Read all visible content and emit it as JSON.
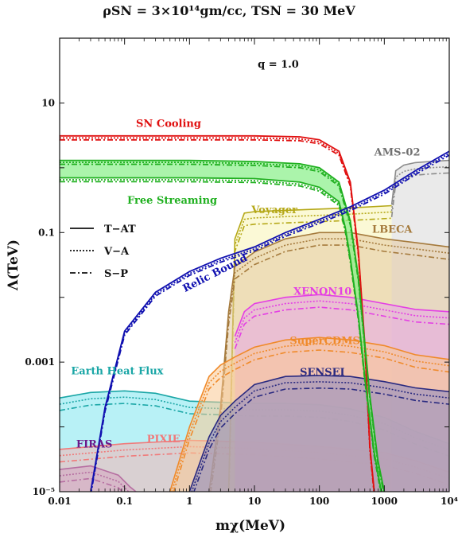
{
  "chart_data": {
    "type": "line",
    "title": "ρSN = 3×10¹⁴gm/cc, TSN = 30 MeV",
    "annotation": "q = 1.0",
    "xlabel": "mχ(MeV)",
    "ylabel": "Λ(TeV)",
    "x_scale": "log",
    "y_scale": "log",
    "xlim": [
      0.01,
      10000
    ],
    "ylim": [
      1e-05,
      100
    ],
    "x_ticks": [
      {
        "value": 0.01,
        "label": "0.01"
      },
      {
        "value": 0.1,
        "label": "0.1"
      },
      {
        "value": 1,
        "label": "1"
      },
      {
        "value": 10,
        "label": "10"
      },
      {
        "value": 100,
        "label": "100"
      },
      {
        "value": 1000,
        "label": "1000"
      },
      {
        "value": 10000,
        "label": "10⁴"
      }
    ],
    "y_ticks": [
      {
        "value": 1e-05,
        "label": "10⁻⁵"
      },
      {
        "value": 0.001,
        "label": "0.001"
      },
      {
        "value": 0.1,
        "label": "0.1"
      },
      {
        "value": 10,
        "label": "10"
      }
    ],
    "legend": {
      "placement": "left",
      "entries": [
        {
          "label": "T−AT",
          "style": "solid"
        },
        {
          "label": "V−A",
          "style": "dotted"
        },
        {
          "label": "S−P",
          "style": "dashdot"
        }
      ]
    },
    "regions": [
      {
        "name": "Earth Heat Flux",
        "color": "#1aa6a6",
        "fill": "#7de6ee",
        "x": [
          0.01,
          0.03,
          0.1,
          0.3,
          1,
          3,
          10,
          30,
          100,
          300,
          1000,
          3000,
          10000
        ],
        "upper": [
          0.00028,
          0.00034,
          0.00036,
          0.00033,
          0.00025,
          0.00024,
          0.00023,
          0.00023,
          0.00022,
          0.00019,
          0.00014,
          8.5e-05,
          5.5e-05
        ]
      },
      {
        "name": "FIRAS",
        "color": "#6a1a8a",
        "fill": "#b090d0",
        "x": [
          0.01,
          0.03,
          0.08,
          0.12,
          0.15
        ],
        "upper": [
          2.2e-05,
          2.5e-05,
          1.8e-05,
          1.2e-05,
          1e-05
        ]
      },
      {
        "name": "PIXIE",
        "color": "#f07a7a",
        "fill": "#f4b4b4",
        "x": [
          0.01,
          0.1,
          1,
          10,
          100,
          1000,
          3000,
          10000
        ],
        "upper": [
          4.5e-05,
          5.5e-05,
          6.2e-05,
          5.8e-05,
          5e-05,
          4e-05,
          3e-05,
          2e-05
        ]
      },
      {
        "name": "Voyager",
        "color": "#b5a817",
        "fill": "#f8f4b4",
        "x": [
          4,
          5,
          7,
          10,
          30,
          100,
          300,
          1300
        ],
        "upper": [
          1e-05,
          0.08,
          0.2,
          0.21,
          0.22,
          0.23,
          0.24,
          0.26
        ]
      },
      {
        "name": "AMS-02",
        "color": "#8c8c8c",
        "fill": "#d8d8d8",
        "x": [
          1300,
          1500,
          2000,
          3000,
          5000,
          10000
        ],
        "upper": [
          0.27,
          0.9,
          1.1,
          1.2,
          1.25,
          1.3
        ]
      },
      {
        "name": "LBECA",
        "color": "#a57a3c",
        "fill": "#e4c9a0",
        "x": [
          2,
          3,
          4,
          5,
          10,
          30,
          100,
          300,
          1000,
          3000,
          10000
        ],
        "upper": [
          1e-05,
          0.0002,
          0.006,
          0.03,
          0.05,
          0.08,
          0.1,
          0.1,
          0.08,
          0.07,
          0.06
        ]
      },
      {
        "name": "XENON10",
        "color": "#e43fe4",
        "fill": "#e7a6e7",
        "x": [
          5,
          7,
          10,
          30,
          100,
          300,
          1000,
          3000,
          10000
        ],
        "upper": [
          0.0025,
          0.006,
          0.008,
          0.01,
          0.011,
          0.01,
          0.008,
          0.0065,
          0.006
        ]
      },
      {
        "name": "SuperCDMS",
        "color": "#f08a2a",
        "fill": "#f9c994",
        "x": [
          0.5,
          1,
          2,
          3,
          5,
          10,
          30,
          100,
          300,
          1000,
          3000,
          10000
        ],
        "upper": [
          1e-05,
          0.0001,
          0.0006,
          0.0009,
          0.0012,
          0.0017,
          0.0022,
          0.0024,
          0.0022,
          0.0018,
          0.0013,
          0.0011
        ]
      },
      {
        "name": "SENSEI",
        "color": "#2a2a80",
        "fill": "#8888c0",
        "x": [
          1,
          2,
          3,
          5,
          10,
          30,
          100,
          300,
          1000,
          3000,
          10000
        ],
        "upper": [
          1e-05,
          7e-05,
          0.00015,
          0.00025,
          0.00045,
          0.0006,
          0.00062,
          0.0006,
          0.0005,
          0.0004,
          0.00035
        ]
      }
    ],
    "series": [
      {
        "name": "SN Cooling",
        "color": "#e01010",
        "x": [
          0.01,
          1,
          10,
          50,
          100,
          200,
          300,
          400,
          500,
          600,
          700
        ],
        "y": [
          3.1,
          3.1,
          3.1,
          3.0,
          2.7,
          1.8,
          0.6,
          0.05,
          0.002,
          5e-05,
          1e-05
        ]
      },
      {
        "name": "Free Streaming",
        "color": "#20b020",
        "x": [
          0.01,
          1,
          10,
          50,
          100,
          200,
          300,
          400,
          500,
          600,
          800,
          1000
        ],
        "y": [
          1.3,
          1.3,
          1.25,
          1.15,
          1.0,
          0.6,
          0.15,
          0.02,
          0.002,
          0.0003,
          3e-05,
          1e-05
        ]
      },
      {
        "name": "Free Streaming lower",
        "color": "#20b020",
        "x": [
          0.01,
          1,
          10,
          50,
          100,
          200,
          250,
          300,
          400,
          500,
          700,
          900
        ],
        "y": [
          0.7,
          0.7,
          0.68,
          0.6,
          0.5,
          0.3,
          0.12,
          0.04,
          0.005,
          0.0006,
          4e-05,
          1e-05
        ]
      },
      {
        "name": "Relic Bound",
        "color": "#1010b0",
        "x": [
          0.03,
          0.05,
          0.1,
          0.3,
          1,
          3,
          10,
          30,
          100,
          300,
          1000,
          3000,
          10000
        ],
        "y": [
          1e-05,
          0.0002,
          0.003,
          0.012,
          0.025,
          0.04,
          0.06,
          0.1,
          0.16,
          0.25,
          0.45,
          0.9,
          1.8
        ]
      }
    ],
    "grid": false
  }
}
